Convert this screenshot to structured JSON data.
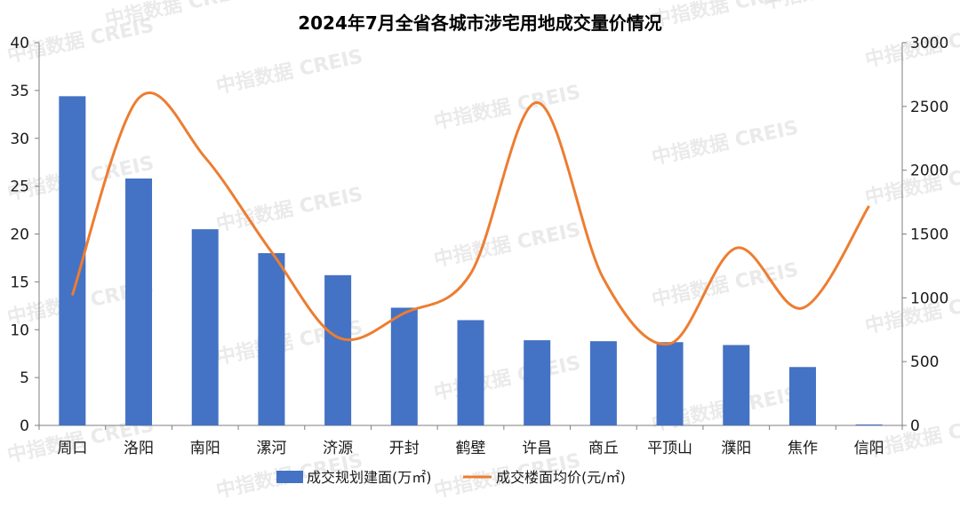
{
  "chart_data": {
    "type": "bar",
    "title": "2024年7月全省各城市涉宅用地成交量价情况",
    "categories": [
      "周口",
      "洛阳",
      "南阳",
      "漯河",
      "济源",
      "开封",
      "鹤壁",
      "许昌",
      "商丘",
      "平顶山",
      "濮阳",
      "焦作",
      "信阳"
    ],
    "series": [
      {
        "name": "成交规划建面(万㎡)",
        "type": "bar",
        "axis": "left",
        "color": "#4472C4",
        "values": [
          34.4,
          25.8,
          20.5,
          18.0,
          15.7,
          12.3,
          11.0,
          8.9,
          8.8,
          8.7,
          8.4,
          6.1,
          0.1
        ]
      },
      {
        "name": "成交楼面均价(元/㎡)",
        "type": "line",
        "smooth": true,
        "axis": "right",
        "color": "#ED7D31",
        "values": [
          1020,
          2565,
          2100,
          1360,
          690,
          880,
          1190,
          2530,
          1150,
          640,
          1390,
          920,
          1720
        ]
      }
    ],
    "y_left": {
      "min": 0,
      "max": 40,
      "step": 5,
      "ticks": [
        "0",
        "5",
        "10",
        "15",
        "20",
        "25",
        "30",
        "35",
        "40"
      ]
    },
    "y_right": {
      "min": 0,
      "max": 3000,
      "step": 500,
      "ticks": [
        "0",
        "500",
        "1000",
        "1500",
        "2000",
        "2500",
        "3000"
      ]
    },
    "grid": false,
    "legend_position": "bottom",
    "watermark": "中指数据 CREIS"
  }
}
